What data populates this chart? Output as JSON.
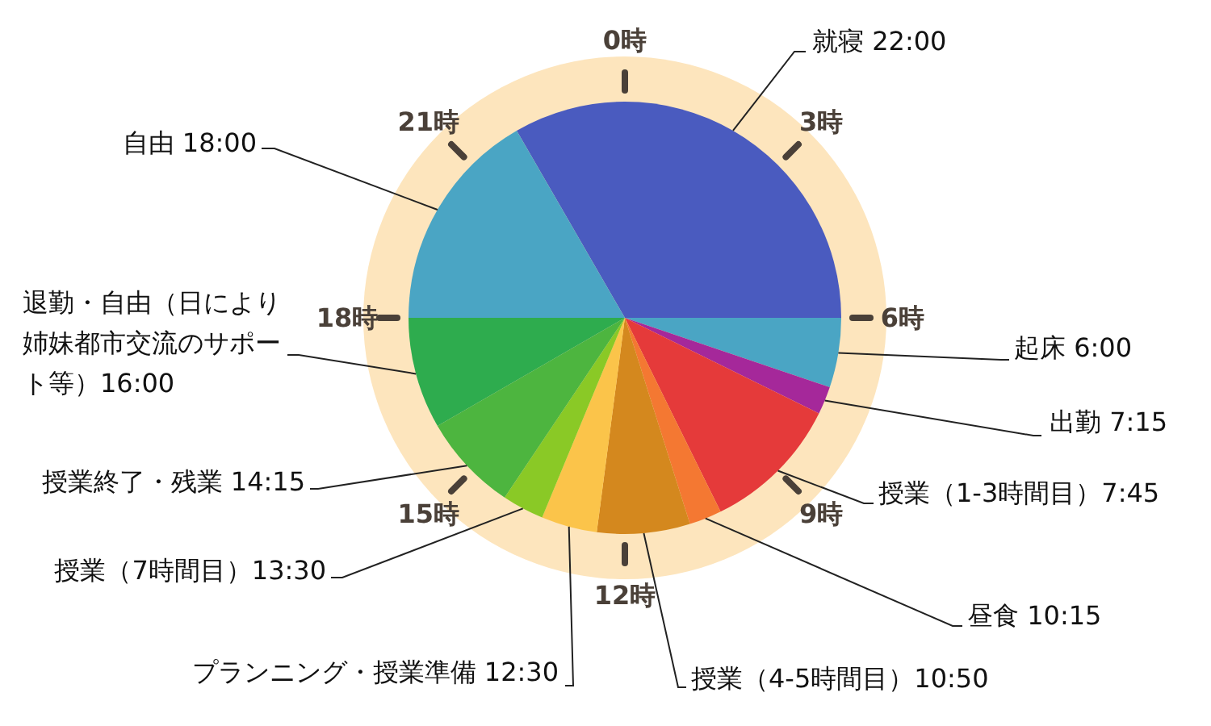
{
  "chart_data": {
    "type": "pie",
    "categories": [
      "就寝 22:00",
      "起床 6:00",
      "出勤 7:15",
      "授業（1-3時間目）7:45",
      "昼食 10:15",
      "授業（4-5時間目）10:50",
      "プランニング・授業準備 12:30",
      "授業（7時間目）13:30",
      "授業終了・残業 14:15",
      "退勤・自由（日により姉妹都市交流のサポート等）16:00",
      "自由 18:00"
    ],
    "values": [
      33.33,
      5.21,
      2.08,
      10.42,
      2.43,
      6.94,
      4.17,
      3.13,
      7.29,
      8.33,
      16.67
    ],
    "colors": [
      "#4a5bbf",
      "#4aa5c4",
      "#a5289a",
      "#e53a3a",
      "#f47832",
      "#d4881e",
      "#fbc44a",
      "#8ac926",
      "#4db53f",
      "#2eac4e",
      "#4aa5c4"
    ],
    "annotations": [
      "0時",
      "3時",
      "6時",
      "9時",
      "12時",
      "15時",
      "18時",
      "21時"
    ]
  }
}
